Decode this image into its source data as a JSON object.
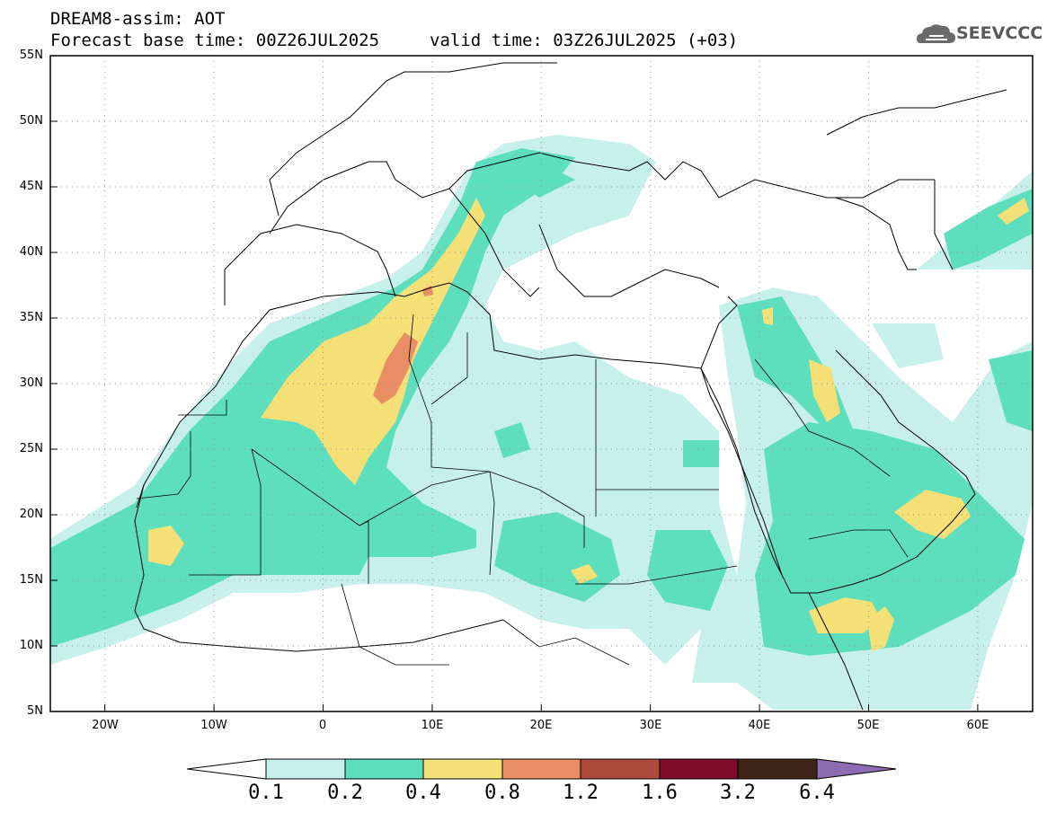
{
  "header": {
    "line1": "DREAM8-assim: AOT",
    "base_time": "Forecast base time: 00Z26JUL2025",
    "valid_time": "valid time: 03Z26JUL2025 (+03)"
  },
  "logo": {
    "text": "SEEVCCC",
    "icon": "cloud-logo-icon"
  },
  "map": {
    "lat_labels": [
      "55N",
      "50N",
      "45N",
      "40N",
      "35N",
      "30N",
      "25N",
      "20N",
      "15N",
      "10N",
      "5N"
    ],
    "lon_labels": [
      "20W",
      "10W",
      "0",
      "10E",
      "20E",
      "30E",
      "40E",
      "50E",
      "60E"
    ],
    "lat_range": [
      5,
      55
    ],
    "lon_range": [
      -25,
      65
    ],
    "grid": "dotted"
  },
  "colorbar": {
    "labels": [
      "0.1",
      "0.2",
      "0.4",
      "0.8",
      "1.2",
      "1.6",
      "3.2",
      "6.4"
    ],
    "colors": [
      "#c8f0ea",
      "#5ddfbe",
      "#f5e078",
      "#e98d64",
      "#ac4a3c",
      "#7e0a2c",
      "#3e2416",
      "#8e6cb0"
    ],
    "under_color": "#ffffff"
  }
}
